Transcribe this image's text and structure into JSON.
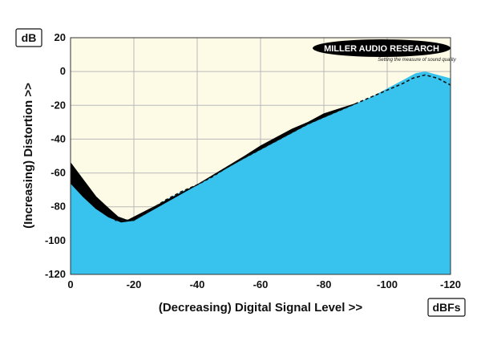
{
  "chart_data": {
    "type": "area",
    "y_unit": "dB",
    "x_unit": "dBFs",
    "xlabel": "(Decreasing) Digital Signal Level >>",
    "ylabel": "(Increasing) Distortion >>",
    "xlim": [
      0,
      -120
    ],
    "ylim": [
      -120,
      20
    ],
    "x_ticks": [
      0,
      -20,
      -40,
      -60,
      -80,
      -100,
      -120
    ],
    "y_ticks": [
      20,
      0,
      -20,
      -40,
      -60,
      -80,
      -100,
      -120
    ],
    "grid": true,
    "colors": {
      "plot_background": "#fdfae6",
      "fill": "#38c3ee",
      "band": "#000000",
      "dashed_line": "#111111",
      "logo": "#000000"
    },
    "series": [
      {
        "style": "filled-area",
        "points": [
          [
            0,
            -64
          ],
          [
            -4,
            -72
          ],
          [
            -8,
            -79
          ],
          [
            -12,
            -84
          ],
          [
            -16,
            -88
          ],
          [
            -20,
            -87
          ],
          [
            -25,
            -82
          ],
          [
            -30,
            -76
          ],
          [
            -35,
            -71
          ],
          [
            -40,
            -67
          ],
          [
            -45,
            -62
          ],
          [
            -50,
            -56
          ],
          [
            -55,
            -51
          ],
          [
            -60,
            -46
          ],
          [
            -65,
            -41
          ],
          [
            -70,
            -36
          ],
          [
            -75,
            -31
          ],
          [
            -80,
            -27
          ],
          [
            -85,
            -23
          ],
          [
            -90,
            -19
          ],
          [
            -95,
            -15
          ],
          [
            -100,
            -10
          ],
          [
            -105,
            -5
          ],
          [
            -109,
            -1
          ],
          [
            -112,
            0
          ],
          [
            -116,
            -2
          ],
          [
            -120,
            -4
          ]
        ]
      },
      {
        "style": "dark-band",
        "upper": [
          [
            0,
            -54
          ],
          [
            -4,
            -64
          ],
          [
            -8,
            -74
          ],
          [
            -12,
            -81
          ],
          [
            -15,
            -86
          ],
          [
            -18,
            -88
          ],
          [
            -40,
            -67
          ],
          [
            -55,
            -50
          ],
          [
            -60,
            -44
          ],
          [
            -65,
            -39
          ],
          [
            -70,
            -34
          ],
          [
            -75,
            -30
          ],
          [
            -80,
            -25
          ],
          [
            -85,
            -22
          ],
          [
            -90,
            -19
          ]
        ],
        "lower": [
          [
            -90,
            -19
          ],
          [
            -85,
            -23
          ],
          [
            -80,
            -27
          ],
          [
            -75,
            -31
          ],
          [
            -70,
            -36
          ],
          [
            -65,
            -41
          ],
          [
            -60,
            -46
          ],
          [
            -55,
            -51
          ],
          [
            -40,
            -67
          ],
          [
            -20,
            -88
          ],
          [
            -16,
            -89
          ],
          [
            -12,
            -86
          ],
          [
            -8,
            -81
          ],
          [
            -4,
            -74
          ],
          [
            0,
            -66
          ]
        ]
      },
      {
        "style": "dashed-line",
        "points": [
          [
            -14,
            -88
          ],
          [
            -20,
            -88
          ],
          [
            -25,
            -82
          ],
          [
            -30,
            -76
          ],
          [
            -35,
            -71
          ],
          [
            -40,
            -67
          ],
          [
            -45,
            -62
          ],
          [
            -50,
            -56
          ],
          [
            -55,
            -51
          ],
          [
            -60,
            -46
          ],
          [
            -65,
            -41
          ],
          [
            -70,
            -36
          ],
          [
            -75,
            -31
          ],
          [
            -80,
            -27
          ],
          [
            -85,
            -23
          ],
          [
            -90,
            -19
          ],
          [
            -95,
            -15
          ],
          [
            -100,
            -11
          ],
          [
            -105,
            -7
          ],
          [
            -108,
            -4
          ],
          [
            -112,
            -2
          ],
          [
            -116,
            -4
          ],
          [
            -120,
            -8
          ]
        ]
      }
    ],
    "logo": {
      "main": "MILLER AUDIO RESEARCH",
      "tagline": "Setting the measure of sound quality"
    }
  }
}
